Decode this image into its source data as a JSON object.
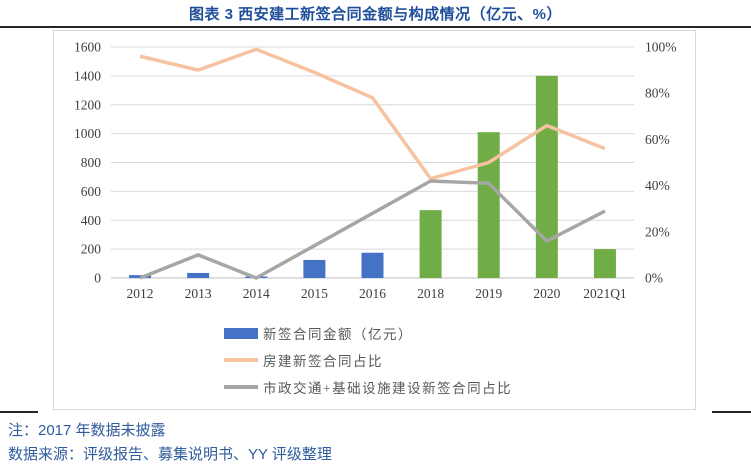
{
  "title": "图表 3 西安建工新签合同金额与构成情况（亿元、%）",
  "notes": {
    "note1": "注：2017 年数据未披露",
    "note2": "数据来源：评级报告、募集说明书、YY 评级整理"
  },
  "colors": {
    "title_blue": "#1F4E9B",
    "note_blue": "#2F5B9B",
    "bar_blue": "#4472C4",
    "bar_green": "#70AD47",
    "line_orange": "#F6C2A0",
    "line_gray": "#A6A6A6",
    "gridline": "#D9D9D9",
    "axis_line": "#BFBFBF",
    "axis_text": "#404040",
    "legend_text": "#595959"
  },
  "chart_data": {
    "type": "bar",
    "subtype": "bar-line combo, dual axis",
    "title": "图表 3 西安建工新签合同金额与构成情况（亿元、%）",
    "categories": [
      "2012",
      "2013",
      "2014",
      "2015",
      "2016",
      "2018",
      "2019",
      "2020",
      "2021Q1"
    ],
    "series": [
      {
        "name": "新签合同金额（亿元）",
        "type": "bar",
        "axis": "left",
        "legend_color": "#4472C4",
        "values": [
          20,
          35,
          10,
          125,
          175,
          470,
          1010,
          1400,
          200
        ],
        "bar_colors": [
          "#4472C4",
          "#4472C4",
          "#4472C4",
          "#4472C4",
          "#4472C4",
          "#70AD47",
          "#70AD47",
          "#70AD47",
          "#70AD47"
        ]
      },
      {
        "name": "房建新签合同占比",
        "type": "line",
        "axis": "right",
        "legend_color": "#F6C2A0",
        "values": [
          96,
          90,
          99,
          89,
          78,
          43,
          50,
          66,
          56
        ]
      },
      {
        "name": "市政交通+基础设施建设新签合同占比",
        "type": "line",
        "axis": "right",
        "legend_color": "#A6A6A6",
        "values": [
          0,
          10,
          0,
          14,
          28,
          42,
          41,
          16,
          29
        ]
      }
    ],
    "left_axis": {
      "min": 0,
      "max": 1600,
      "step": 200,
      "ticks": [
        "0",
        "200",
        "400",
        "600",
        "800",
        "1000",
        "1200",
        "1400",
        "1600"
      ]
    },
    "right_axis": {
      "min": 0,
      "max": 100,
      "step": 20,
      "ticks": [
        "0%",
        "20%",
        "40%",
        "60%",
        "80%",
        "100%"
      ]
    },
    "grid": true,
    "legend_position": "bottom"
  }
}
